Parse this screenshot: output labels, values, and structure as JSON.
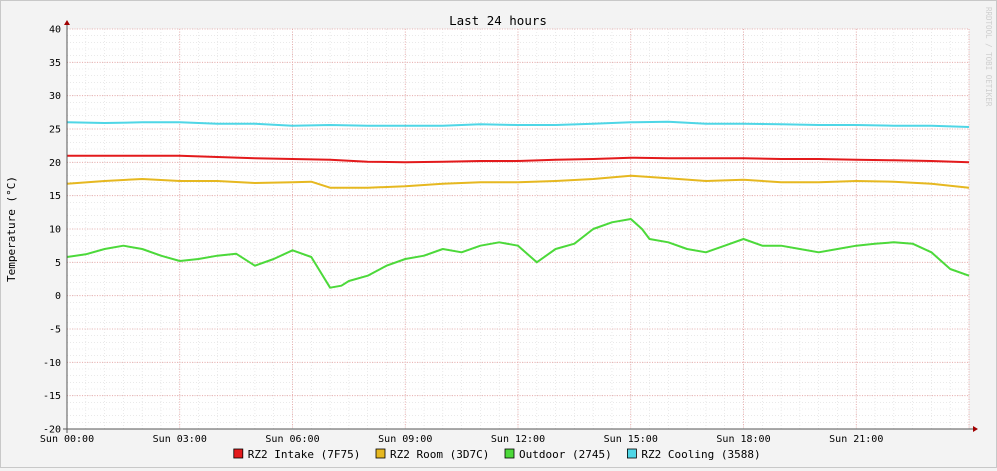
{
  "chart_data": {
    "type": "line",
    "title": "Last 24 hours",
    "ylabel": "Temperature (°C)",
    "xlabel": "",
    "watermark": "RRDTOOL / TOBI OETIKER",
    "ylim": [
      -20,
      40
    ],
    "xlim": [
      0,
      24
    ],
    "yticks": [
      "40",
      "35",
      "30",
      "25",
      "20",
      "15",
      "10",
      "5",
      "0",
      "-5",
      "-10",
      "-15",
      "-20"
    ],
    "xticks": [
      "Sun 00:00",
      "Sun 03:00",
      "Sun 06:00",
      "Sun 09:00",
      "Sun 12:00",
      "Sun 15:00",
      "Sun 18:00",
      "Sun 21:00"
    ],
    "grid": true,
    "legend_position": "bottom",
    "series": [
      {
        "name": "RZ2 Intake (7F75)",
        "color": "#e31a1c",
        "x": [
          0,
          1,
          2,
          3,
          4,
          5,
          6,
          7,
          8,
          9,
          10,
          11,
          12,
          13,
          14,
          15,
          16,
          17,
          18,
          19,
          20,
          21,
          22,
          23,
          24
        ],
        "y": [
          21.0,
          21.0,
          21.0,
          21.0,
          20.8,
          20.6,
          20.5,
          20.4,
          20.1,
          20.0,
          20.1,
          20.2,
          20.2,
          20.4,
          20.5,
          20.7,
          20.6,
          20.6,
          20.6,
          20.5,
          20.5,
          20.4,
          20.3,
          20.2,
          20.0
        ]
      },
      {
        "name": "RZ2 Room (3D7C)",
        "color": "#e6b820",
        "x": [
          0,
          1,
          2,
          3,
          4,
          5,
          6,
          6.5,
          7,
          8,
          9,
          10,
          11,
          12,
          13,
          14,
          15,
          16,
          17,
          18,
          19,
          20,
          21,
          22,
          23,
          24
        ],
        "y": [
          16.8,
          17.2,
          17.5,
          17.2,
          17.2,
          16.9,
          17.0,
          17.1,
          16.2,
          16.2,
          16.4,
          16.8,
          17.0,
          17.0,
          17.2,
          17.5,
          18.0,
          17.6,
          17.2,
          17.4,
          17.0,
          17.0,
          17.2,
          17.1,
          16.8,
          16.2
        ]
      },
      {
        "name": "Outdoor (2745)",
        "color": "#4cd93a",
        "x": [
          0,
          0.5,
          1,
          1.5,
          2,
          2.5,
          3,
          3.5,
          4,
          4.5,
          5,
          5.5,
          6,
          6.5,
          7,
          7.3,
          7.5,
          8,
          8.5,
          9,
          9.5,
          10,
          10.5,
          11,
          11.5,
          12,
          12.5,
          13,
          13.5,
          14,
          14.5,
          15,
          15.3,
          15.5,
          16,
          16.5,
          17,
          17.5,
          18,
          18.5,
          19,
          19.5,
          20,
          20.5,
          21,
          21.5,
          22,
          22.5,
          23,
          23.5,
          24
        ],
        "y": [
          5.8,
          6.2,
          7.0,
          7.5,
          7.0,
          6.0,
          5.2,
          5.5,
          6.0,
          6.3,
          4.5,
          5.5,
          6.8,
          5.8,
          1.2,
          1.5,
          2.2,
          3.0,
          4.5,
          5.5,
          6.0,
          7.0,
          6.5,
          7.5,
          8.0,
          7.5,
          5.0,
          7.0,
          7.8,
          10.0,
          11.0,
          11.5,
          10.0,
          8.5,
          8.0,
          7.0,
          6.5,
          7.5,
          8.5,
          7.5,
          7.5,
          7.0,
          6.5,
          7.0,
          7.5,
          7.8,
          8.0,
          7.8,
          6.5,
          4.0,
          3.0
        ]
      },
      {
        "name": "RZ2 Cooling (3588)",
        "color": "#4fd6e6",
        "x": [
          0,
          1,
          2,
          3,
          4,
          5,
          6,
          7,
          8,
          9,
          10,
          11,
          12,
          13,
          14,
          15,
          16,
          17,
          18,
          19,
          20,
          21,
          22,
          23,
          24
        ],
        "y": [
          26.0,
          25.9,
          26.0,
          26.0,
          25.8,
          25.8,
          25.5,
          25.6,
          25.5,
          25.5,
          25.5,
          25.7,
          25.6,
          25.6,
          25.8,
          26.0,
          26.1,
          25.8,
          25.8,
          25.7,
          25.6,
          25.6,
          25.5,
          25.5,
          25.3
        ]
      }
    ]
  }
}
